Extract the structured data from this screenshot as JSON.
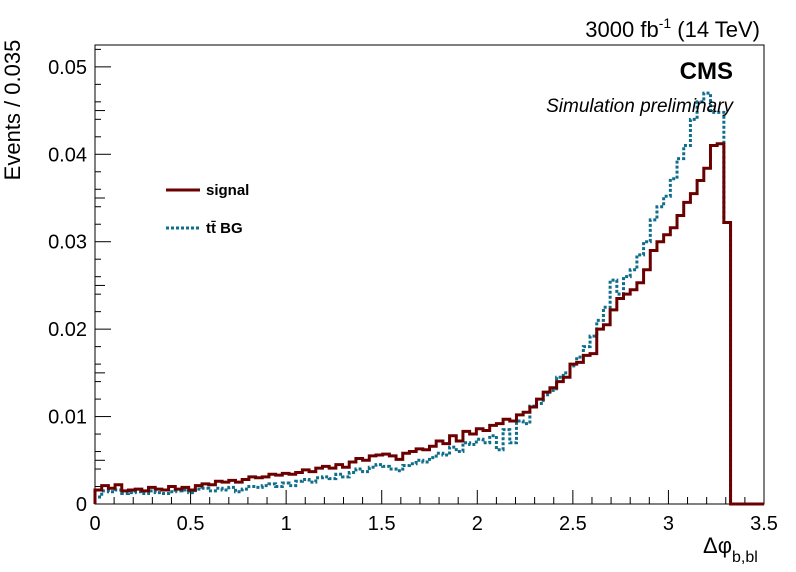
{
  "header": {
    "lumi_value": "3000 fb",
    "lumi_exponent": "-1",
    "lumi_energy": " (14 TeV)",
    "experiment": "CMS",
    "status": "Simulation preliminary"
  },
  "chart_data": {
    "type": "step",
    "ylabel": "Events / 0.035",
    "xlabel_main": "Δφ",
    "xlabel_sub": "b,bl",
    "xlim": [
      0,
      3.5
    ],
    "ylim": [
      0,
      0.0525
    ],
    "bin_width": 0.035,
    "x_ticks": [
      {
        "value": 0,
        "label": "0"
      },
      {
        "value": 0.5,
        "label": "0.5"
      },
      {
        "value": 1,
        "label": "1"
      },
      {
        "value": 1.5,
        "label": "1.5"
      },
      {
        "value": 2,
        "label": "2"
      },
      {
        "value": 2.5,
        "label": "2.5"
      },
      {
        "value": 3,
        "label": "3"
      },
      {
        "value": 3.5,
        "label": "3.5"
      }
    ],
    "y_ticks": [
      {
        "value": 0,
        "label": "0"
      },
      {
        "value": 0.01,
        "label": "0.01"
      },
      {
        "value": 0.02,
        "label": "0.02"
      },
      {
        "value": 0.03,
        "label": "0.03"
      },
      {
        "value": 0.04,
        "label": "0.04"
      },
      {
        "value": 0.05,
        "label": "0.05"
      }
    ],
    "legend_position": "upper-left",
    "series": [
      {
        "name": "signal",
        "color": "#6b0000",
        "style": "solid",
        "values": [
          0.0016,
          0.0021,
          0.0018,
          0.0022,
          0.0015,
          0.0016,
          0.0017,
          0.0015,
          0.0019,
          0.0017,
          0.0016,
          0.002,
          0.0017,
          0.0019,
          0.0016,
          0.0021,
          0.0023,
          0.0022,
          0.0026,
          0.0025,
          0.0027,
          0.0025,
          0.0028,
          0.0031,
          0.003,
          0.0031,
          0.0034,
          0.0033,
          0.0035,
          0.0034,
          0.0036,
          0.0039,
          0.0037,
          0.0041,
          0.0043,
          0.0041,
          0.0045,
          0.0042,
          0.0048,
          0.0052,
          0.005,
          0.0055,
          0.0056,
          0.0057,
          0.0055,
          0.0051,
          0.0058,
          0.006,
          0.0063,
          0.0062,
          0.0066,
          0.0072,
          0.0069,
          0.0078,
          0.0072,
          0.0083,
          0.008,
          0.0086,
          0.0084,
          0.009,
          0.0092,
          0.0097,
          0.0095,
          0.0102,
          0.0105,
          0.0111,
          0.012,
          0.0128,
          0.0133,
          0.014,
          0.0145,
          0.016,
          0.0162,
          0.017,
          0.0172,
          0.02,
          0.0205,
          0.0222,
          0.0235,
          0.024,
          0.0245,
          0.0253,
          0.0268,
          0.029,
          0.03,
          0.0308,
          0.0316,
          0.033,
          0.0345,
          0.0355,
          0.037,
          0.0384,
          0.041,
          0.0412,
          0.0322
        ]
      },
      {
        "name": "tt̄ BG",
        "color": "#0f6e8c",
        "style": "dotted",
        "values": [
          0.0008,
          0.0015,
          0.0014,
          0.0016,
          0.0012,
          0.0013,
          0.0014,
          0.0012,
          0.0015,
          0.0013,
          0.0012,
          0.0014,
          0.0015,
          0.0016,
          0.0013,
          0.0017,
          0.0018,
          0.0015,
          0.0018,
          0.0016,
          0.0019,
          0.0014,
          0.0017,
          0.002,
          0.0019,
          0.0021,
          0.0023,
          0.002,
          0.0024,
          0.0021,
          0.0026,
          0.0028,
          0.0025,
          0.003,
          0.0031,
          0.0029,
          0.0034,
          0.0031,
          0.0036,
          0.004,
          0.0037,
          0.0042,
          0.0045,
          0.0043,
          0.004,
          0.0038,
          0.0044,
          0.0046,
          0.005,
          0.0048,
          0.0053,
          0.0058,
          0.0056,
          0.0065,
          0.006,
          0.007,
          0.0068,
          0.0074,
          0.007,
          0.0078,
          0.0062,
          0.0085,
          0.007,
          0.0095,
          0.0092,
          0.0112,
          0.0115,
          0.0125,
          0.013,
          0.0145,
          0.015,
          0.0158,
          0.0168,
          0.018,
          0.0192,
          0.021,
          0.0225,
          0.0256,
          0.024,
          0.026,
          0.0268,
          0.0285,
          0.03,
          0.0325,
          0.034,
          0.0352,
          0.0372,
          0.0395,
          0.041,
          0.044,
          0.046,
          0.047,
          0.0448,
          0.0448,
          0.0322
        ]
      }
    ]
  }
}
